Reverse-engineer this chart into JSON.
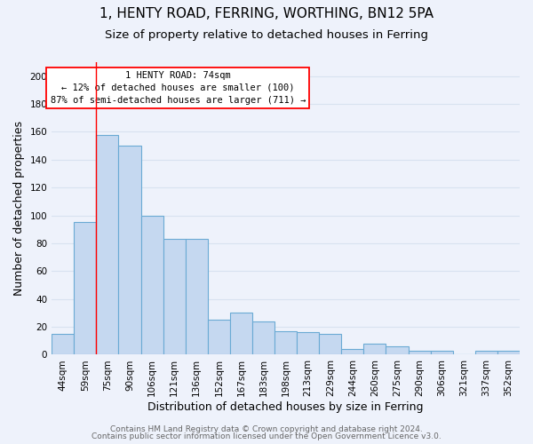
{
  "title": "1, HENTY ROAD, FERRING, WORTHING, BN12 5PA",
  "subtitle": "Size of property relative to detached houses in Ferring",
  "xlabel": "Distribution of detached houses by size in Ferring",
  "ylabel": "Number of detached properties",
  "categories": [
    "44sqm",
    "59sqm",
    "75sqm",
    "90sqm",
    "106sqm",
    "121sqm",
    "136sqm",
    "152sqm",
    "167sqm",
    "183sqm",
    "198sqm",
    "213sqm",
    "229sqm",
    "244sqm",
    "260sqm",
    "275sqm",
    "290sqm",
    "306sqm",
    "321sqm",
    "337sqm",
    "352sqm"
  ],
  "values": [
    15,
    95,
    158,
    150,
    100,
    83,
    83,
    25,
    30,
    24,
    17,
    16,
    15,
    4,
    8,
    6,
    3,
    3,
    0,
    3,
    3
  ],
  "bar_color": "#c5d8f0",
  "bar_edge_color": "#6aaad4",
  "bar_width": 1.0,
  "ylim": [
    0,
    210
  ],
  "yticks": [
    0,
    20,
    40,
    60,
    80,
    100,
    120,
    140,
    160,
    180,
    200
  ],
  "red_line_index": 2,
  "annotation_title": "1 HENTY ROAD: 74sqm",
  "annotation_line1": "← 12% of detached houses are smaller (100)",
  "annotation_line2": "87% of semi-detached houses are larger (711) →",
  "footer1": "Contains HM Land Registry data © Crown copyright and database right 2024.",
  "footer2": "Contains public sector information licensed under the Open Government Licence v3.0.",
  "bg_color": "#eef2fb",
  "grid_color": "#d8e2f0",
  "title_fontsize": 11,
  "subtitle_fontsize": 9.5,
  "axis_label_fontsize": 9,
  "tick_fontsize": 7.5,
  "footer_fontsize": 6.5
}
